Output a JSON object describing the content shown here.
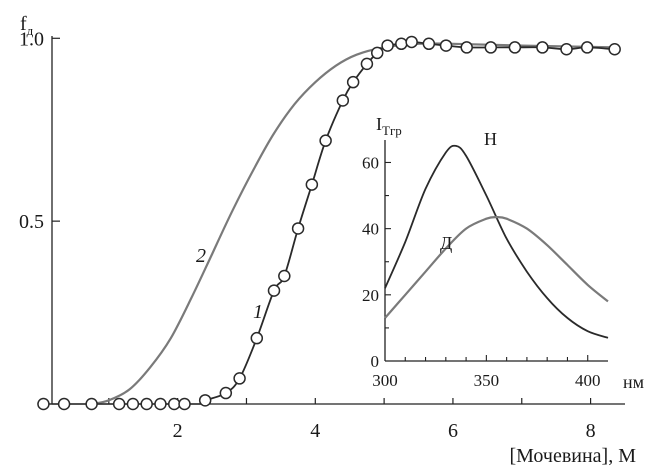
{
  "chart_data": [
    {
      "type": "line",
      "title": "",
      "ylabel": "f",
      "ylabel_sub": "д",
      "xlabel": "[Мочевина], М",
      "xlim": [
        0,
        8.5
      ],
      "ylim": [
        0,
        1.05
      ],
      "x_ticks": [
        2,
        4,
        6,
        8
      ],
      "x_tick_labels": [
        "2",
        "4",
        "6",
        "8"
      ],
      "y_ticks": [
        0.5,
        1.0
      ],
      "y_tick_labels": [
        "0.5",
        "1.0"
      ],
      "grid": false,
      "series": [
        {
          "name": "1",
          "color": "#2a2a2a",
          "markers": "open-circle",
          "points": [
            [
              0.05,
              0.0
            ],
            [
              0.35,
              0.0
            ],
            [
              0.75,
              0.0
            ],
            [
              1.15,
              0.0
            ],
            [
              1.35,
              0.0
            ],
            [
              1.55,
              0.0
            ],
            [
              1.75,
              0.0
            ],
            [
              1.95,
              0.0
            ],
            [
              2.1,
              0.0
            ],
            [
              2.4,
              0.01
            ],
            [
              2.7,
              0.03
            ],
            [
              2.9,
              0.07
            ],
            [
              3.15,
              0.18
            ],
            [
              3.4,
              0.31
            ],
            [
              3.55,
              0.35
            ],
            [
              3.75,
              0.48
            ],
            [
              3.95,
              0.6
            ],
            [
              4.15,
              0.72
            ],
            [
              4.4,
              0.83
            ],
            [
              4.55,
              0.88
            ],
            [
              4.75,
              0.93
            ],
            [
              4.9,
              0.96
            ],
            [
              5.05,
              0.98
            ],
            [
              5.25,
              0.985
            ],
            [
              5.4,
              0.99
            ],
            [
              5.65,
              0.985
            ],
            [
              5.9,
              0.98
            ],
            [
              6.2,
              0.975
            ],
            [
              6.55,
              0.975
            ],
            [
              6.9,
              0.975
            ],
            [
              7.3,
              0.975
            ],
            [
              7.65,
              0.97
            ],
            [
              7.95,
              0.975
            ],
            [
              8.35,
              0.97
            ]
          ]
        },
        {
          "name": "2",
          "color": "#7a7a7a",
          "markers": "none",
          "points": [
            [
              0.75,
              0.0
            ],
            [
              1.0,
              0.01
            ],
            [
              1.3,
              0.04
            ],
            [
              1.6,
              0.1
            ],
            [
              1.9,
              0.18
            ],
            [
              2.2,
              0.29
            ],
            [
              2.5,
              0.41
            ],
            [
              2.8,
              0.53
            ],
            [
              3.1,
              0.64
            ],
            [
              3.4,
              0.74
            ],
            [
              3.7,
              0.82
            ],
            [
              4.0,
              0.88
            ],
            [
              4.3,
              0.925
            ],
            [
              4.6,
              0.955
            ],
            [
              5.0,
              0.975
            ],
            [
              5.5,
              0.985
            ],
            [
              6.0,
              0.985
            ],
            [
              7.0,
              0.98
            ],
            [
              8.35,
              0.975
            ]
          ]
        }
      ]
    },
    {
      "type": "line",
      "title": "",
      "ylabel": "I",
      "ylabel_sub": "Тгр",
      "xlabel": "нм",
      "xlim": [
        300,
        410
      ],
      "ylim": [
        0,
        68
      ],
      "x_ticks": [
        300,
        350,
        400
      ],
      "x_tick_labels": [
        "300",
        "350",
        "400"
      ],
      "y_ticks": [
        0,
        20,
        40,
        60
      ],
      "y_tick_labels": [
        "0",
        "20",
        "40",
        "60"
      ],
      "grid": false,
      "series": [
        {
          "name": "Н",
          "color": "#2a2a2a",
          "points": [
            [
              300,
              22
            ],
            [
              310,
              36
            ],
            [
              320,
              52
            ],
            [
              330,
              63
            ],
            [
              335,
              65
            ],
            [
              340,
              62
            ],
            [
              350,
              50
            ],
            [
              360,
              37
            ],
            [
              370,
              27
            ],
            [
              380,
              19
            ],
            [
              390,
              13
            ],
            [
              400,
              9
            ],
            [
              410,
              7
            ]
          ]
        },
        {
          "name": "Д",
          "color": "#7a7a7a",
          "points": [
            [
              300,
              13
            ],
            [
              310,
              20
            ],
            [
              320,
              27
            ],
            [
              330,
              34
            ],
            [
              340,
              40
            ],
            [
              350,
              43
            ],
            [
              355,
              43.5
            ],
            [
              360,
              43
            ],
            [
              370,
              40
            ],
            [
              380,
              35
            ],
            [
              390,
              29
            ],
            [
              400,
              23
            ],
            [
              410,
              18
            ]
          ]
        }
      ]
    }
  ]
}
